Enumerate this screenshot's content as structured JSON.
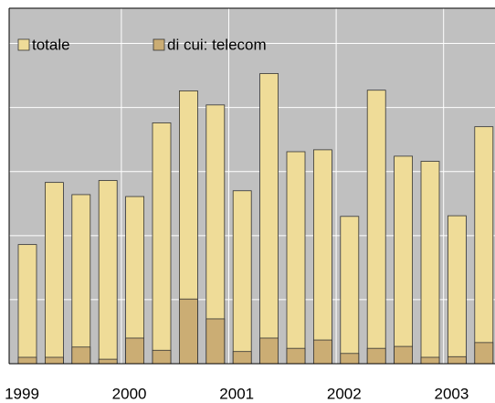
{
  "chart_data": {
    "type": "bar",
    "categories": [
      "1999",
      null,
      null,
      null,
      "2000",
      null,
      null,
      null,
      "2001",
      null,
      null,
      null,
      "2002",
      null,
      null,
      null,
      "2003",
      null
    ],
    "series": [
      {
        "name": "totale",
        "color": "#efdc98",
        "values": [
          1.86,
          2.83,
          2.64,
          2.86,
          2.61,
          3.76,
          4.26,
          4.04,
          2.7,
          4.53,
          3.31,
          3.34,
          2.3,
          4.27,
          3.24,
          3.16,
          2.31,
          3.7
        ]
      },
      {
        "name": "di cui: telecom",
        "color": "#cbad74",
        "values": [
          0.1,
          0.1,
          0.26,
          0.07,
          0.4,
          0.21,
          1.01,
          0.7,
          0.19,
          0.4,
          0.24,
          0.37,
          0.16,
          0.24,
          0.27,
          0.1,
          0.11,
          0.33
        ]
      }
    ],
    "ylim": [
      0,
      5.55
    ],
    "yticks": [
      0,
      1,
      2,
      3,
      4,
      5
    ],
    "grid": true,
    "legend": "top-left"
  }
}
